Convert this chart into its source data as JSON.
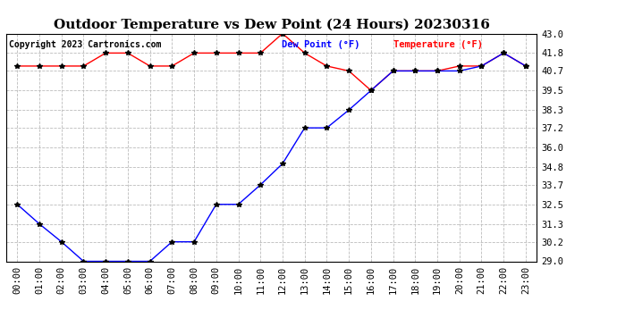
{
  "title": "Outdoor Temperature vs Dew Point (24 Hours) 20230316",
  "copyright": "Copyright 2023 Cartronics.com",
  "legend_dew": "Dew Point (°F)",
  "legend_temp": "Temperature (°F)",
  "x_labels": [
    "00:00",
    "01:00",
    "02:00",
    "03:00",
    "04:00",
    "05:00",
    "06:00",
    "07:00",
    "08:00",
    "09:00",
    "10:00",
    "11:00",
    "12:00",
    "13:00",
    "14:00",
    "15:00",
    "16:00",
    "17:00",
    "18:00",
    "19:00",
    "20:00",
    "21:00",
    "22:00",
    "23:00"
  ],
  "temperature": [
    41.0,
    41.0,
    41.0,
    41.0,
    41.8,
    41.8,
    41.0,
    41.0,
    41.8,
    41.8,
    41.8,
    41.8,
    43.0,
    41.8,
    41.0,
    40.7,
    39.5,
    40.7,
    40.7,
    40.7,
    41.0,
    41.0,
    41.8,
    41.0
  ],
  "dew_point": [
    32.5,
    31.3,
    30.2,
    29.0,
    29.0,
    29.0,
    29.0,
    30.2,
    30.2,
    32.5,
    32.5,
    33.7,
    35.0,
    37.2,
    37.2,
    38.3,
    39.5,
    40.7,
    40.7,
    40.7,
    40.7,
    41.0,
    41.8,
    41.0
  ],
  "ylim_min": 29.0,
  "ylim_max": 43.0,
  "yticks": [
    29.0,
    30.2,
    31.3,
    32.5,
    33.7,
    34.8,
    36.0,
    37.2,
    38.3,
    39.5,
    40.7,
    41.8,
    43.0
  ],
  "temp_color": "red",
  "dew_color": "blue",
  "bg_color": "white",
  "grid_color": "#bbbbbb",
  "title_fontsize": 11,
  "tick_fontsize": 7.5,
  "copyright_fontsize": 7,
  "legend_fontsize": 7.5,
  "marker": "*",
  "marker_color": "black",
  "marker_size": 4
}
